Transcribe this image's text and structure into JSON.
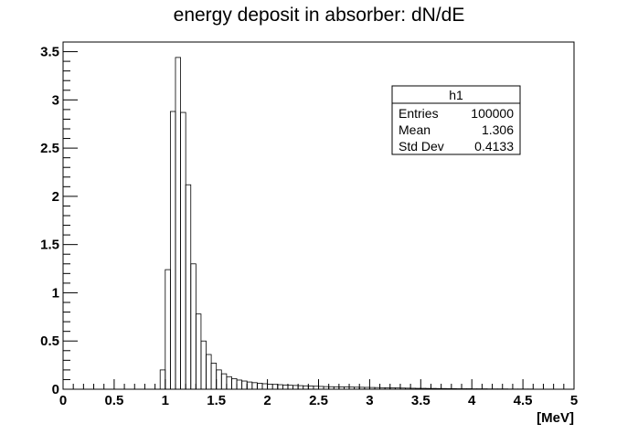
{
  "chart_data": {
    "type": "histogram",
    "title": "energy deposit in absorber: dN/dE",
    "xlabel": "[MeV]",
    "ylabel": "",
    "xlim": [
      0,
      5
    ],
    "ylim": [
      0,
      3.6
    ],
    "x_ticks": [
      "0",
      "0.5",
      "1",
      "1.5",
      "2",
      "2.5",
      "3",
      "3.5",
      "4",
      "4.5",
      "5"
    ],
    "y_ticks": [
      "0",
      "0.5",
      "1",
      "1.5",
      "2",
      "2.5",
      "3",
      "3.5"
    ],
    "bin_width": 0.05,
    "bins_start": 0,
    "values": [
      0,
      0,
      0,
      0,
      0,
      0,
      0,
      0,
      0,
      0,
      0,
      0,
      0,
      0,
      0,
      0,
      0,
      0,
      0,
      0.2,
      1.24,
      2.88,
      3.44,
      2.87,
      2.12,
      1.3,
      0.78,
      0.5,
      0.36,
      0.27,
      0.2,
      0.16,
      0.13,
      0.11,
      0.095,
      0.085,
      0.075,
      0.068,
      0.062,
      0.057,
      0.053,
      0.05,
      0.047,
      0.044,
      0.041,
      0.039,
      0.037,
      0.035,
      0.033,
      0.031,
      0.029,
      0.027,
      0.026,
      0.025,
      0.024,
      0.023,
      0.022,
      0.021,
      0.02,
      0.019,
      0.018,
      0.017,
      0.016,
      0.015,
      0.014,
      0.013,
      0.012,
      0.011,
      0.01,
      0.009,
      0.009,
      0.008,
      0.008,
      0.007,
      0.007,
      0.006,
      0.006,
      0.005,
      0.005,
      0.005,
      0.004,
      0.004,
      0.004,
      0.003,
      0.003,
      0.003,
      0.003,
      0.002,
      0.002,
      0.002,
      0.002,
      0.002,
      0.001,
      0.001,
      0.001,
      0.001,
      0.001,
      0.001,
      0.001,
      0.001
    ],
    "legend": "none",
    "grid": false
  },
  "stats_box": {
    "name": "h1",
    "rows": [
      {
        "label": "Entries",
        "value": "100000"
      },
      {
        "label": "Mean",
        "value": "1.306"
      },
      {
        "label": "Std Dev",
        "value": "0.4133"
      }
    ]
  }
}
